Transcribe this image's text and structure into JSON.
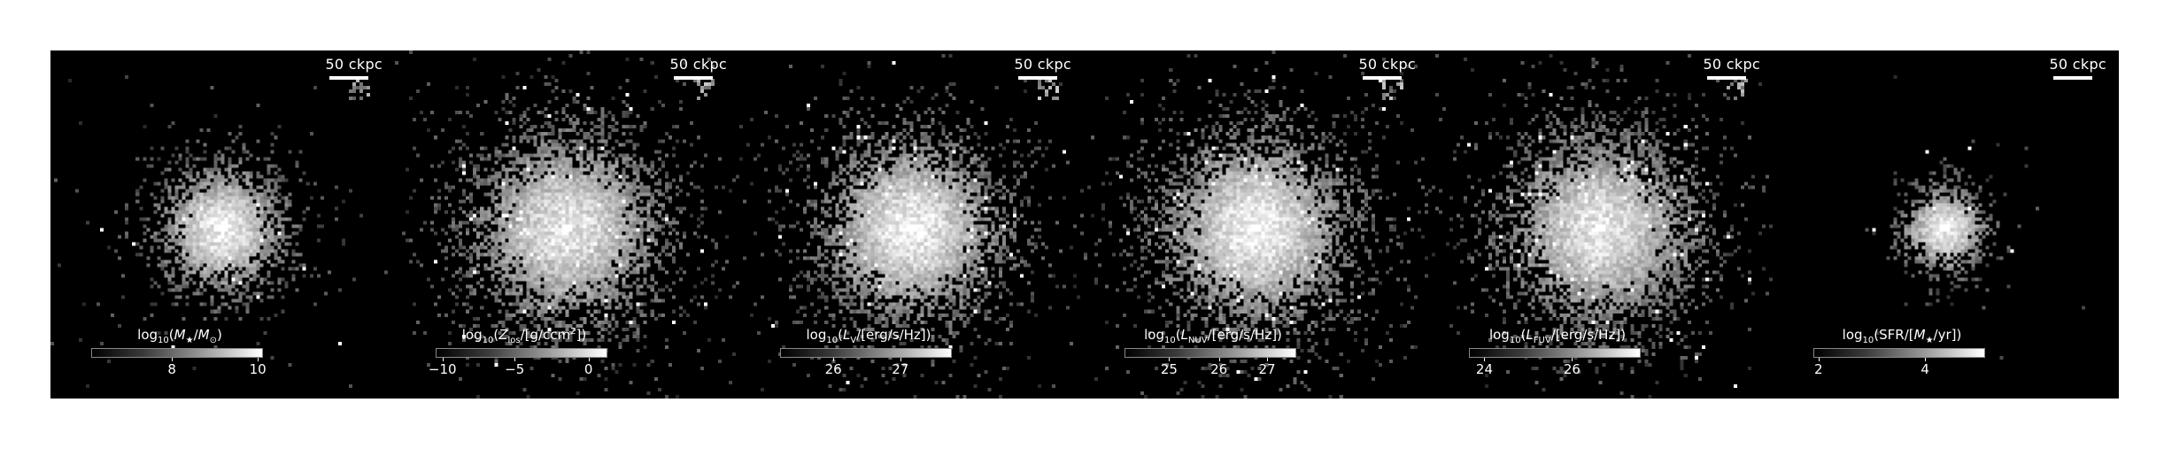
{
  "scale_label": "50 ckpc",
  "panels": [
    {
      "title_html": "log<sub>10</sub>(<i>M</i><sub>★</sub>/<i>M</i><sub>⊙</sub>)",
      "ticks": [
        {
          "label": "8"
        },
        {
          "label": "10"
        }
      ],
      "ticks_frac": [
        0.47,
        0.97
      ],
      "spread": 0.55,
      "core": 1.0,
      "noise": 0.35
    },
    {
      "title_html": "log<sub>10</sub>(<i>Z</i><sub>los</sub>/[g/ccm<sup>2</sup>])",
      "ticks": [
        {
          "label": "−10"
        },
        {
          "label": "−5"
        },
        {
          "label": "0"
        }
      ],
      "ticks_frac": [
        0.04,
        0.46,
        0.89
      ],
      "spread": 1.0,
      "core": 0.95,
      "noise": 0.6
    },
    {
      "title_html": "log<sub>10</sub>(<i>L</i><sub>V</sub>/[erg/s/Hz])",
      "ticks": [
        {
          "label": "26"
        },
        {
          "label": "27"
        }
      ],
      "ticks_frac": [
        0.31,
        0.7
      ],
      "spread": 0.95,
      "core": 1.0,
      "noise": 0.55
    },
    {
      "title_html": "log<sub>10</sub>(<i>L</i><sub>NUV</sub>/[erg/s/Hz])",
      "ticks": [
        {
          "label": "25"
        },
        {
          "label": "26"
        },
        {
          "label": "27"
        }
      ],
      "ticks_frac": [
        0.26,
        0.55,
        0.83
      ],
      "spread": 1.0,
      "core": 1.0,
      "noise": 0.7
    },
    {
      "title_html": "log<sub>10</sub>(<i>L</i><sub>FUV</sub>/[erg/s/Hz])",
      "ticks": [
        {
          "label": "24"
        },
        {
          "label": "26"
        }
      ],
      "ticks_frac": [
        0.09,
        0.6
      ],
      "spread": 1.0,
      "core": 0.95,
      "noise": 0.7
    },
    {
      "title_html": "log<sub>10</sub>(SFR/[<i>M</i><sub>★</sub>/yr])",
      "ticks": [
        {
          "label": "2"
        },
        {
          "label": "4"
        }
      ],
      "ticks_frac": [
        0.03,
        0.65
      ],
      "spread": 0.25,
      "core": 1.0,
      "noise": 0.15
    }
  ]
}
